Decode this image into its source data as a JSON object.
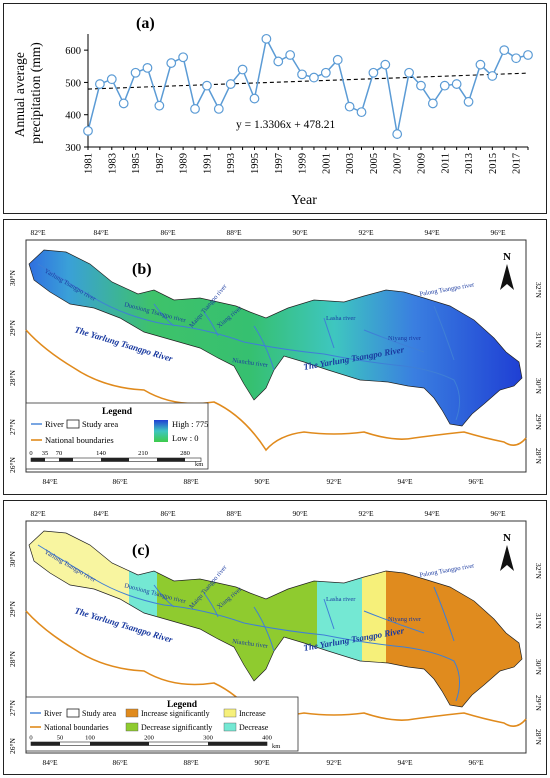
{
  "panels": {
    "a": {
      "label": "(a)"
    },
    "b": {
      "label": "(b)"
    },
    "c": {
      "label": "(c)"
    }
  },
  "chart_data": [
    {
      "type": "line",
      "title": "(a)",
      "xlabel": "Year",
      "ylabel": "Annual average precipitation (mm)",
      "xlim": [
        1981,
        2018
      ],
      "ylim": [
        300,
        650
      ],
      "yticks": [
        300,
        400,
        500,
        600
      ],
      "xticks": [
        1981,
        1983,
        1985,
        1987,
        1989,
        1991,
        1993,
        1995,
        1997,
        1999,
        2001,
        2003,
        2005,
        2007,
        2009,
        2011,
        2013,
        2015,
        2017
      ],
      "x": [
        1981,
        1982,
        1983,
        1984,
        1985,
        1986,
        1987,
        1988,
        1989,
        1990,
        1991,
        1992,
        1993,
        1994,
        1995,
        1996,
        1997,
        1998,
        1999,
        2000,
        2001,
        2002,
        2003,
        2004,
        2005,
        2006,
        2007,
        2008,
        2009,
        2010,
        2011,
        2012,
        2013,
        2014,
        2015,
        2016,
        2017,
        2018
      ],
      "y": [
        350,
        495,
        510,
        435,
        530,
        545,
        428,
        560,
        578,
        418,
        490,
        418,
        495,
        540,
        450,
        635,
        565,
        585,
        525,
        515,
        530,
        570,
        425,
        408,
        530,
        555,
        340,
        530,
        490,
        435,
        490,
        495,
        440,
        555,
        520,
        600,
        575,
        585
      ],
      "trend": {
        "slope": 1.3306,
        "intercept": 478.21,
        "equation_label": "y = 1.3306x + 478.21"
      },
      "grid": false
    }
  ],
  "map_b": {
    "lon_ticks": [
      "82°E",
      "84°E",
      "86°E",
      "88°E",
      "90°E",
      "92°E",
      "94°E",
      "96°E"
    ],
    "lat_ticks_left": [
      "30°N",
      "29°N",
      "28°N",
      "27°N",
      "26°N"
    ],
    "lat_ticks_right": [
      "32°N",
      "31°N",
      "30°N",
      "29°N",
      "28°N"
    ],
    "river_labels": {
      "main": "The Yarlung Tsangpo River",
      "main2": "The Yarlung Tsangpo River",
      "upper": "Yarlung Tsangpo river",
      "duoxiong": "Duoxiong Tsangpo river",
      "nianchu": "Nianchu river",
      "maqu": "Maiqu Tsangpo river",
      "xiang": "Xiang river",
      "lasha": "Lasha river",
      "nyang": "Niyang river",
      "palong": "Palong Tsangpo river"
    },
    "legend": {
      "title": "Legend",
      "river": "River",
      "study_area": "Study area",
      "national_boundaries": "National boundaries",
      "high": "High : 775",
      "low": "Low : 0"
    },
    "scale": {
      "ticks": [
        "0",
        "35",
        "70",
        "140",
        "210",
        "280"
      ],
      "unit": "km"
    },
    "colors": {
      "high": "#1f3fd4",
      "low": "#3ecb4a",
      "river": "#3f7fd6",
      "boundary": "#e08a1c"
    }
  },
  "map_c": {
    "lon_ticks": [
      "82°E",
      "84°E",
      "86°E",
      "88°E",
      "90°E",
      "92°E",
      "94°E",
      "96°E"
    ],
    "lat_ticks_left": [
      "30°N",
      "29°N",
      "28°N",
      "27°N",
      "26°N"
    ],
    "lat_ticks_right": [
      "32°N",
      "31°N",
      "30°N",
      "29°N",
      "28°N"
    ],
    "legend": {
      "title": "Legend",
      "river": "River",
      "study_area": "Study area",
      "national_boundaries": "National boundaries",
      "increase_significantly": "Increase significantly",
      "increase": "Increase",
      "decrease_significantly": "Decrease significantly",
      "decrease": "Decrease"
    },
    "scale": {
      "ticks": [
        "0",
        "50",
        "100",
        "200",
        "300",
        "400"
      ],
      "unit": "km"
    },
    "colors": {
      "increase_significantly": "#e08b1e",
      "increase": "#f6f07a",
      "decrease_significantly": "#8fcb2f",
      "decrease": "#74e8d3",
      "upper_zone": "#f8f5a0"
    }
  }
}
